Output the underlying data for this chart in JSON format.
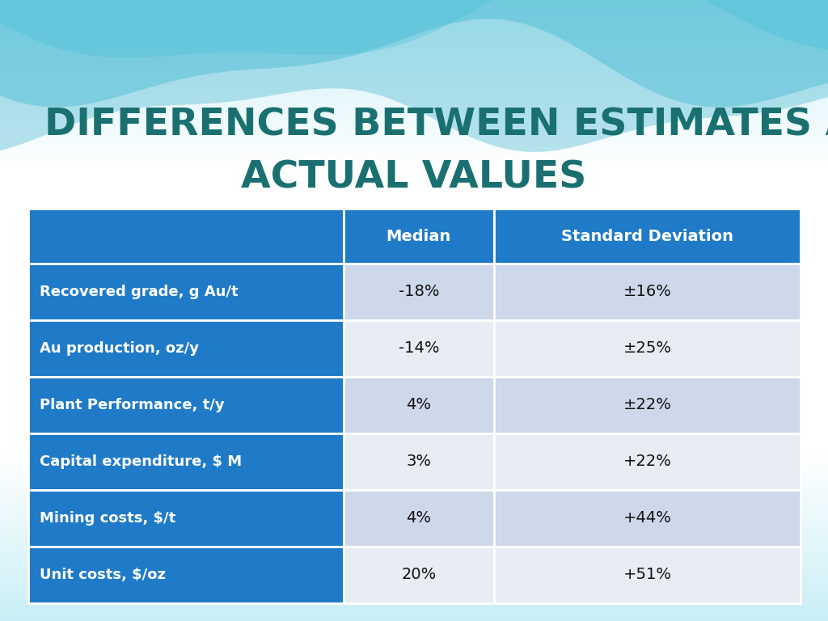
{
  "title_line1": "DIFFERENCES BETWEEN ESTIMATES AND",
  "title_line2": "ACTUAL VALUES",
  "title_color": "#1a7070",
  "header_row": [
    "",
    "Median",
    "Standard Deviation"
  ],
  "rows": [
    [
      "Recovered grade, g Au/t",
      "-18%",
      "±16%"
    ],
    [
      "Au production, oz/y",
      "-14%",
      "±25%"
    ],
    [
      "Plant Performance, t/y",
      "4%",
      "±22%"
    ],
    [
      "Capital expenditure, $ M",
      "3%",
      "+22%"
    ],
    [
      "Mining costs, $/t",
      "4%",
      "+44%"
    ],
    [
      "Unit costs, $/oz",
      "20%",
      "+51%"
    ]
  ],
  "header_bg": "#1f7bc8",
  "header_text_color": "#ffffff",
  "row_label_bg": "#1f7bc8",
  "row_label_text_color": "#ffffff",
  "row_even_bg": "#cdd8ea",
  "row_odd_bg": "#e8edf5",
  "data_text_color": "#111111",
  "title_fontsize": 34,
  "header_fontsize": 14,
  "row_label_fontsize": 13,
  "row_data_fontsize": 14,
  "wave1_color": "#7dd8e8",
  "wave2_color": "#50c0d8",
  "wave3_color": "#38b0cc",
  "wave_bg_color": "#c8eef5"
}
